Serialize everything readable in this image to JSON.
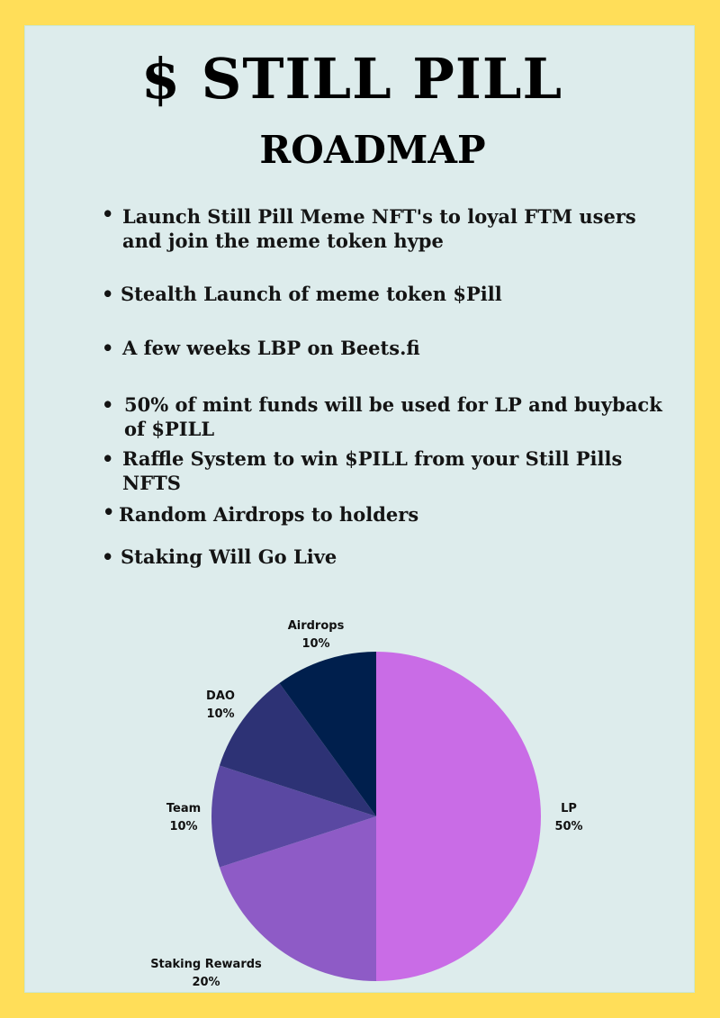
{
  "header": {
    "title": "$ STILL PILL",
    "subtitle": "ROADMAP"
  },
  "roadmap": {
    "bullet": "•",
    "items": [
      {
        "lines": [
          "Launch Still Pill Meme NFT's to loyal FTM users",
          "and join the meme token hype"
        ]
      },
      {
        "lines": [
          "Stealth Launch of meme token $Pill"
        ]
      },
      {
        "lines": [
          "A few weeks LBP on Beets.fi"
        ]
      },
      {
        "lines": [
          "50% of mint funds will be used for LP and buyback",
          "of $PILL"
        ]
      },
      {
        "lines": [
          "Raffle System to win $PILL from your Still Pills",
          "NFTS"
        ]
      },
      {
        "lines": [
          "Random Airdrops to holders"
        ]
      },
      {
        "lines": [
          "Staking Will Go Live"
        ]
      }
    ]
  },
  "colors": {
    "background": "#ffde59",
    "panel": "#ddecec",
    "lp": "#c96ce6",
    "staking": "#8e5bc6",
    "team": "#5a48a2",
    "dao": "#2d3275",
    "airdrops": "#001f4d"
  },
  "chart_data": {
    "type": "pie",
    "title": "",
    "slices": [
      {
        "label": "LP",
        "value": 50,
        "value_label": "50%",
        "color": "#c96ce6"
      },
      {
        "label": "Staking Rewards",
        "value": 20,
        "value_label": "20%",
        "color": "#8e5bc6"
      },
      {
        "label": "Team",
        "value": 10,
        "value_label": "10%",
        "color": "#5a48a2"
      },
      {
        "label": "DAO",
        "value": 10,
        "value_label": "10%",
        "color": "#2d3275"
      },
      {
        "label": "Airdrops",
        "value": 10,
        "value_label": "10%",
        "color": "#001f4d"
      }
    ],
    "start": "top",
    "direction": "clockwise",
    "legend": "none"
  }
}
